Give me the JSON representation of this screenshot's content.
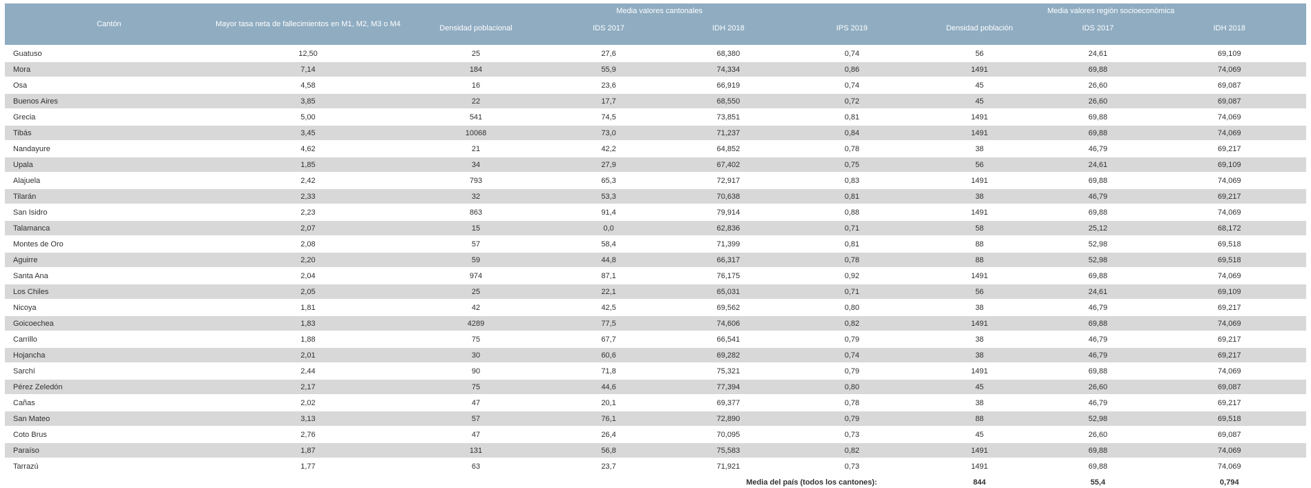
{
  "table": {
    "header_groups": {
      "cantonales": "Media valores cantonales",
      "region": "Media valores región socioeconómica"
    },
    "columns": {
      "canton": "Cantón",
      "mayor_tasa": "Mayor tasa neta de fallecimientos en M1, M2, M3 o M4",
      "densidad_poblacional": "Densidad poblacional",
      "ids_2017_cantonal": "IDS 2017",
      "idh_2018_cantonal": "IDH 2018",
      "ips_2019": "IPS 2019",
      "densidad_poblacion": "Densidad población",
      "ids_2017_region": "IDS 2017",
      "idh_2018_region": "IDH 2018"
    },
    "rows": [
      [
        "Guatuso",
        "12,50",
        "25",
        "27,6",
        "68,380",
        "0,74",
        "56",
        "24,61",
        "69,109"
      ],
      [
        "Mora",
        "7,14",
        "184",
        "55,9",
        "74,334",
        "0,86",
        "1491",
        "69,88",
        "74,069"
      ],
      [
        "Osa",
        "4,58",
        "16",
        "23,6",
        "66,919",
        "0,74",
        "45",
        "26,60",
        "69,087"
      ],
      [
        "Buenos Aires",
        "3,85",
        "22",
        "17,7",
        "68,550",
        "0,72",
        "45",
        "26,60",
        "69,087"
      ],
      [
        "Grecia",
        "5,00",
        "541",
        "74,5",
        "73,851",
        "0,81",
        "1491",
        "69,88",
        "74,069"
      ],
      [
        "Tibás",
        "3,45",
        "10068",
        "73,0",
        "71,237",
        "0,84",
        "1491",
        "69,88",
        "74,069"
      ],
      [
        "Nandayure",
        "4,62",
        "21",
        "42,2",
        "64,852",
        "0,78",
        "38",
        "46,79",
        "69,217"
      ],
      [
        "Upala",
        "1,85",
        "34",
        "27,9",
        "67,402",
        "0,75",
        "56",
        "24,61",
        "69,109"
      ],
      [
        "Alajuela",
        "2,42",
        "793",
        "65,3",
        "72,917",
        "0,83",
        "1491",
        "69,88",
        "74,069"
      ],
      [
        "Tilarán",
        "2,33",
        "32",
        "53,3",
        "70,638",
        "0,81",
        "38",
        "46,79",
        "69,217"
      ],
      [
        "San Isidro",
        "2,23",
        "863",
        "91,4",
        "79,914",
        "0,88",
        "1491",
        "69,88",
        "74,069"
      ],
      [
        "Talamanca",
        "2,07",
        "15",
        "0,0",
        "62,836",
        "0,71",
        "58",
        "25,12",
        "68,172"
      ],
      [
        "Montes de Oro",
        "2,08",
        "57",
        "58,4",
        "71,399",
        "0,81",
        "88",
        "52,98",
        "69,518"
      ],
      [
        "Aguirre",
        "2,20",
        "59",
        "44,8",
        "66,317",
        "0,78",
        "88",
        "52,98",
        "69,518"
      ],
      [
        "Santa Ana",
        "2,04",
        "974",
        "87,1",
        "76,175",
        "0,92",
        "1491",
        "69,88",
        "74,069"
      ],
      [
        "Los Chiles",
        "2,05",
        "25",
        "22,1",
        "65,031",
        "0,71",
        "56",
        "24,61",
        "69,109"
      ],
      [
        "Nicoya",
        "1,81",
        "42",
        "42,5",
        "69,562",
        "0,80",
        "38",
        "46,79",
        "69,217"
      ],
      [
        "Goicoechea",
        "1,83",
        "4289",
        "77,5",
        "74,606",
        "0,82",
        "1491",
        "69,88",
        "74,069"
      ],
      [
        "Carrillo",
        "1,88",
        "75",
        "67,7",
        "66,541",
        "0,79",
        "38",
        "46,79",
        "69,217"
      ],
      [
        "Hojancha",
        "2,01",
        "30",
        "60,6",
        "69,282",
        "0,74",
        "38",
        "46,79",
        "69,217"
      ],
      [
        "Sarchí",
        "2,44",
        "90",
        "71,8",
        "75,321",
        "0,79",
        "1491",
        "69,88",
        "74,069"
      ],
      [
        "Pérez Zeledón",
        "2,17",
        "75",
        "44,6",
        "77,394",
        "0,80",
        "45",
        "26,60",
        "69,087"
      ],
      [
        "Cañas",
        "2,02",
        "47",
        "20,1",
        "69,377",
        "0,78",
        "38",
        "46,79",
        "69,217"
      ],
      [
        "San Mateo",
        "3,13",
        "57",
        "76,1",
        "72,890",
        "0,79",
        "88",
        "52,98",
        "69,518"
      ],
      [
        "Coto Brus",
        "2,76",
        "47",
        "26,4",
        "70,095",
        "0,73",
        "45",
        "26,60",
        "69,087"
      ],
      [
        "Paraíso",
        "1,87",
        "131",
        "56,8",
        "75,583",
        "0,82",
        "1491",
        "69,88",
        "74,069"
      ],
      [
        "Tarrazú",
        "1,77",
        "63",
        "23,7",
        "71,921",
        "0,73",
        "1491",
        "69,88",
        "74,069"
      ]
    ],
    "footer": {
      "label": "Media del país (todos los cantones):",
      "densidad_poblacion": "844",
      "ids_2017": "55,4",
      "idh_2018": "0,794"
    },
    "colors": {
      "header_bg": "#8FACC1",
      "header_text": "#FFFFFF",
      "stripe_gray": "#D8D8D8",
      "row_white": "#FFFFFF",
      "body_text": "#303030"
    }
  }
}
